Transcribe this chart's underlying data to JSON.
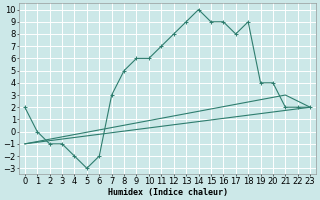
{
  "xlabel": "Humidex (Indice chaleur)",
  "bg_color": "#cce8e8",
  "grid_color": "#ffffff",
  "line_color": "#2e7d6e",
  "xlim": [
    -0.5,
    23.5
  ],
  "ylim": [
    -3.5,
    10.5
  ],
  "xticks": [
    0,
    1,
    2,
    3,
    4,
    5,
    6,
    7,
    8,
    9,
    10,
    11,
    12,
    13,
    14,
    15,
    16,
    17,
    18,
    19,
    20,
    21,
    22,
    23
  ],
  "yticks": [
    -3,
    -2,
    -1,
    0,
    1,
    2,
    3,
    4,
    5,
    6,
    7,
    8,
    9,
    10
  ],
  "main_x": [
    0,
    1,
    2,
    3,
    4,
    5,
    6,
    7,
    8,
    9,
    10,
    11,
    12,
    13,
    14,
    15,
    16,
    17,
    18,
    19,
    20,
    21,
    22,
    23
  ],
  "main_y": [
    2,
    0,
    -1,
    -1,
    -2,
    -3,
    -2,
    3,
    5,
    6,
    6,
    7,
    8,
    9,
    10,
    9,
    9,
    8,
    9,
    4,
    4,
    2,
    2,
    2
  ],
  "line2_x": [
    0,
    23
  ],
  "line2_y": [
    -1,
    2
  ],
  "line3_x": [
    0,
    21,
    23
  ],
  "line3_y": [
    -1,
    3,
    2
  ],
  "font_size": 6.0
}
